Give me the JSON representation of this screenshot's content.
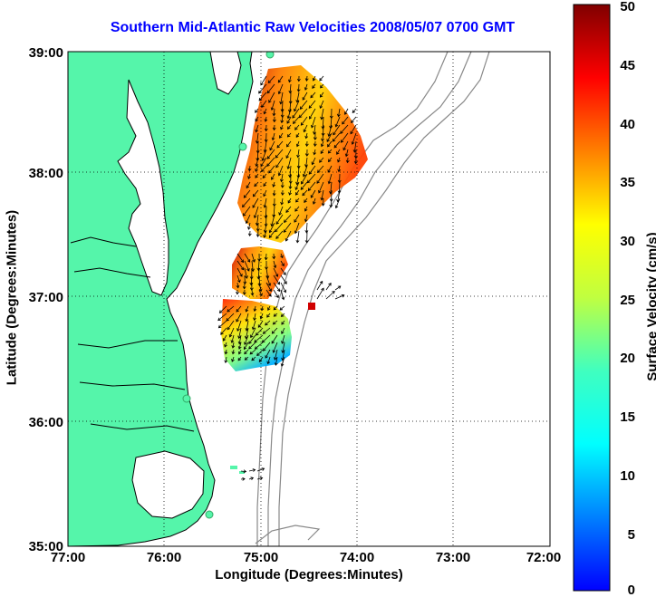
{
  "title": "Southern Mid-Atlantic Raw Velocities 2008/05/07 0700 GMT",
  "map": {
    "xlabel": "Longitude (Degrees:Minutes)",
    "ylabel": "Latitude (Degrees:Minutes)",
    "lon_range": [
      -77,
      -72
    ],
    "lat_range": [
      35,
      39
    ],
    "x_ticks": [
      "77:00",
      "76:00",
      "75:00",
      "74:00",
      "73:00",
      "72:00"
    ],
    "y_ticks": [
      "39:00",
      "38:00",
      "37:00",
      "36:00",
      "35:00"
    ],
    "grid": "dotted",
    "land_color": "#55f5aa",
    "contour_color": "#888888"
  },
  "colorbar": {
    "label": "Surface Velocity (cm/s)",
    "range": [
      0,
      50
    ],
    "ticks": [
      "50",
      "45",
      "40",
      "35",
      "30",
      "25",
      "20",
      "15",
      "10",
      "5",
      "0"
    ],
    "colormap": "jet"
  }
}
